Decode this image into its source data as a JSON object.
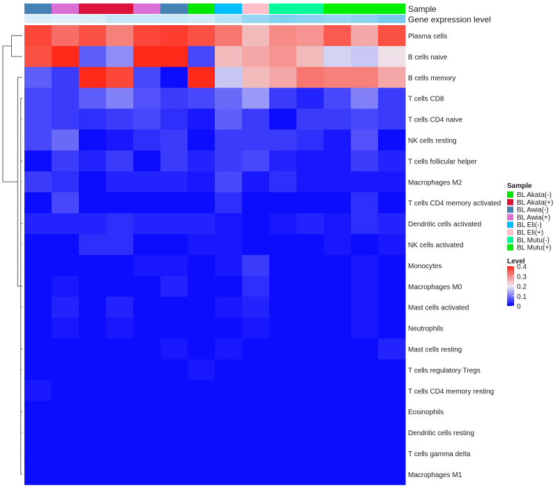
{
  "chart_data": {
    "type": "heatmap",
    "annotation_labels": [
      "Sample",
      "Gene expression level"
    ],
    "rows": [
      "Plasma cells",
      "B cells naive",
      "B cells memory",
      "T cells CD8",
      "T cells CD4 naive",
      "NK cells resting",
      "T cells follicular helper",
      "Macrophages M2",
      "T cells CD4 memory activated",
      "Dendritic cells activated",
      "NK cells activated",
      "Monocytes",
      "Macrophages M0",
      "Mast cells activated",
      "Neutrophils",
      "Mast cells resting",
      "T cells regulatory  Tregs",
      "T cells CD4 memory resting",
      "Eosinophils",
      "Dendritic cells resting",
      "T cells gamma delta",
      "Macrophages M1"
    ],
    "columns": [
      {
        "sample": "BL Awia(-)"
      },
      {
        "sample": "BL Awia(+)"
      },
      {
        "sample": "BL Akata(+)"
      },
      {
        "sample": "BL Akata(+)"
      },
      {
        "sample": "BL Awia(+)"
      },
      {
        "sample": "BL Awia(-)"
      },
      {
        "sample": "BL Akata(-)"
      },
      {
        "sample": "BL Eli(-)"
      },
      {
        "sample": "BL Eli(+)"
      },
      {
        "sample": "BL Mutu(-)"
      },
      {
        "sample": "BL Mutu(-)"
      },
      {
        "sample": "BL Mutu(+)"
      },
      {
        "sample": "BL Mutu(+)"
      },
      {
        "sample": "BL Mutu(+)"
      }
    ],
    "expression_track": [
      0.18,
      0.17,
      0.18,
      0.22,
      0.22,
      0.22,
      0.2,
      0.25,
      0.32,
      0.36,
      0.34,
      0.32,
      0.34,
      0.38
    ],
    "values": [
      [
        0.37,
        0.33,
        0.36,
        0.31,
        0.37,
        0.38,
        0.36,
        0.32,
        0.25,
        0.3,
        0.29,
        0.35,
        0.27,
        0.36
      ],
      [
        0.36,
        0.4,
        0.08,
        0.12,
        0.4,
        0.4,
        0.06,
        0.25,
        0.27,
        0.29,
        0.25,
        0.18,
        0.17,
        0.21
      ],
      [
        0.08,
        0.05,
        0.4,
        0.37,
        0.06,
        0.01,
        0.4,
        0.17,
        0.25,
        0.27,
        0.32,
        0.31,
        0.31,
        0.27
      ],
      [
        0.06,
        0.05,
        0.08,
        0.11,
        0.07,
        0.05,
        0.06,
        0.09,
        0.13,
        0.05,
        0.03,
        0.06,
        0.11,
        0.05
      ],
      [
        0.06,
        0.05,
        0.04,
        0.05,
        0.06,
        0.04,
        0.02,
        0.08,
        0.05,
        0.01,
        0.05,
        0.05,
        0.06,
        0.05
      ],
      [
        0.06,
        0.09,
        0.01,
        0.02,
        0.04,
        0.05,
        0.01,
        0.05,
        0.05,
        0.05,
        0.04,
        0.02,
        0.07,
        0.01
      ],
      [
        0.01,
        0.05,
        0.03,
        0.05,
        0.01,
        0.05,
        0.03,
        0.05,
        0.06,
        0.03,
        0.02,
        0.02,
        0.05,
        0.03
      ],
      [
        0.05,
        0.04,
        0.01,
        0.03,
        0.03,
        0.03,
        0.02,
        0.06,
        0.02,
        0.04,
        0.02,
        0.02,
        0.02,
        0.02
      ],
      [
        0.01,
        0.06,
        0.01,
        0.01,
        0.01,
        0.01,
        0.01,
        0.04,
        0.01,
        0.01,
        0.01,
        0.01,
        0.04,
        0.01
      ],
      [
        0.03,
        0.03,
        0.03,
        0.04,
        0.03,
        0.03,
        0.03,
        0.02,
        0.01,
        0.02,
        0.03,
        0.02,
        0.04,
        0.03
      ],
      [
        0.01,
        0.01,
        0.04,
        0.04,
        0.01,
        0.01,
        0.02,
        0.02,
        0.01,
        0.01,
        0.01,
        0.02,
        0.01,
        0.02
      ],
      [
        0.01,
        0.01,
        0.01,
        0.01,
        0.02,
        0.02,
        0.01,
        0.02,
        0.05,
        0.01,
        0.01,
        0.01,
        0.02,
        0.01
      ],
      [
        0.01,
        0.02,
        0.01,
        0.01,
        0.01,
        0.03,
        0.01,
        0.01,
        0.04,
        0.01,
        0.01,
        0.01,
        0.02,
        0.01
      ],
      [
        0.01,
        0.03,
        0.01,
        0.03,
        0.01,
        0.01,
        0.01,
        0.02,
        0.03,
        0.01,
        0.01,
        0.01,
        0.02,
        0.01
      ],
      [
        0.01,
        0.02,
        0.01,
        0.02,
        0.01,
        0.01,
        0.01,
        0.01,
        0.02,
        0.01,
        0.01,
        0.01,
        0.02,
        0.01
      ],
      [
        0.01,
        0.01,
        0.01,
        0.01,
        0.01,
        0.02,
        0.01,
        0.02,
        0.01,
        0.01,
        0.01,
        0.01,
        0.01,
        0.03
      ],
      [
        0.01,
        0.01,
        0.01,
        0.01,
        0.01,
        0.01,
        0.02,
        0.01,
        0.01,
        0.01,
        0.01,
        0.01,
        0.01,
        0.01
      ],
      [
        0.02,
        0.01,
        0.01,
        0.01,
        0.01,
        0.01,
        0.01,
        0.01,
        0.01,
        0.01,
        0.01,
        0.01,
        0.01,
        0.01
      ],
      [
        0.01,
        0.01,
        0.01,
        0.01,
        0.01,
        0.01,
        0.01,
        0.01,
        0.01,
        0.01,
        0.01,
        0.01,
        0.01,
        0.01
      ],
      [
        0.01,
        0.01,
        0.01,
        0.01,
        0.01,
        0.01,
        0.01,
        0.01,
        0.01,
        0.01,
        0.01,
        0.01,
        0.01,
        0.01
      ],
      [
        0.01,
        0.01,
        0.01,
        0.01,
        0.01,
        0.01,
        0.01,
        0.01,
        0.01,
        0.01,
        0.01,
        0.01,
        0.01,
        0.01
      ],
      [
        0.01,
        0.01,
        0.01,
        0.01,
        0.01,
        0.01,
        0.01,
        0.01,
        0.01,
        0.01,
        0.01,
        0.01,
        0.01,
        0.01
      ]
    ],
    "color_scale": {
      "range": [
        0,
        0.4
      ],
      "stops": [
        {
          "value": 0,
          "color": "#0000ff"
        },
        {
          "value": 0.2,
          "color": "#ecebf2"
        },
        {
          "value": 0.4,
          "color": "#ff2a1a"
        }
      ]
    },
    "expression_track_colors": {
      "low": "#e9f3fb",
      "high": "#6ec8ee"
    },
    "legends": {
      "sample": {
        "title": "Sample",
        "items": [
          {
            "label": "BL Akata(-)",
            "color": "#00e600"
          },
          {
            "label": "BL Akata(+)",
            "color": "#dc143c"
          },
          {
            "label": "BL Awia(-)",
            "color": "#4682b4"
          },
          {
            "label": "BL Awia(+)",
            "color": "#da70d6"
          },
          {
            "label": "BL Eli(-)",
            "color": "#00bfff"
          },
          {
            "label": "BL Eli(+)",
            "color": "#ffc0cb"
          },
          {
            "label": "BL Mutu(-)",
            "color": "#00fa9a"
          },
          {
            "label": "BL Mutu(+)",
            "color": "#00ee00"
          }
        ]
      },
      "level": {
        "title": "Level",
        "ticks": [
          {
            "value": 0.4,
            "label": "0.4"
          },
          {
            "value": 0.3,
            "label": "0.3"
          },
          {
            "value": 0.2,
            "label": "0.2"
          },
          {
            "value": 0.1,
            "label": "0.1"
          },
          {
            "value": 0,
            "label": "0"
          }
        ]
      }
    },
    "row_dendrogram": {
      "merges": [
        [
          0,
          1,
          0.55
        ],
        [
          2,
          3,
          0.24
        ],
        [
          -1,
          -2,
          1.0
        ]
      ]
    }
  }
}
